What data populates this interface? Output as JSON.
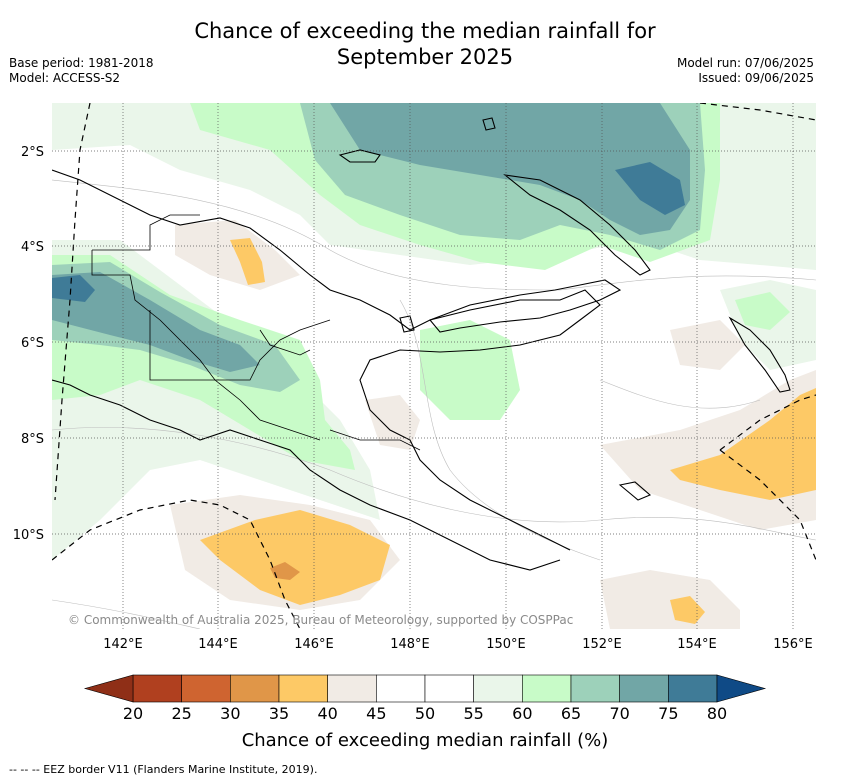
{
  "header": {
    "title_line1": "Chance of exceeding the median rainfall for",
    "title_line2": "September 2025",
    "base_period": "Base period: 1981-2018",
    "model": "Model: ACCESS-S2",
    "model_run": "Model run: 07/06/2025",
    "issued": "Issued: 09/06/2025"
  },
  "map": {
    "lat_labels": [
      "2°S",
      "4°S",
      "6°S",
      "8°S",
      "10°S"
    ],
    "lon_labels": [
      "142°E",
      "144°E",
      "146°E",
      "148°E",
      "150°E",
      "152°E",
      "154°E",
      "156°E"
    ],
    "copyright": "© Commonwealth of Australia 2025, Bureau of Meteorology, supported by COSPPac"
  },
  "colorbar": {
    "ticks": [
      "20",
      "25",
      "30",
      "35",
      "40",
      "45",
      "50",
      "55",
      "60",
      "65",
      "70",
      "75",
      "80"
    ],
    "colors": [
      "#b0401f",
      "#cf6430",
      "#e09648",
      "#fdc966",
      "#f1ebe5",
      "#ffffff",
      "#ffffff",
      "#eaf6ea",
      "#c8fbc8",
      "#9dd1ba",
      "#71a6a6",
      "#3f7b97",
      "#0f4a86"
    ],
    "under_color": "#8f2f17",
    "over_color": "#0f4a86",
    "label": "Chance of exceeding median rainfall (%)"
  },
  "footnote": "-- -- -- EEZ border V11 (Flanders Marine Institute, 2019)."
}
